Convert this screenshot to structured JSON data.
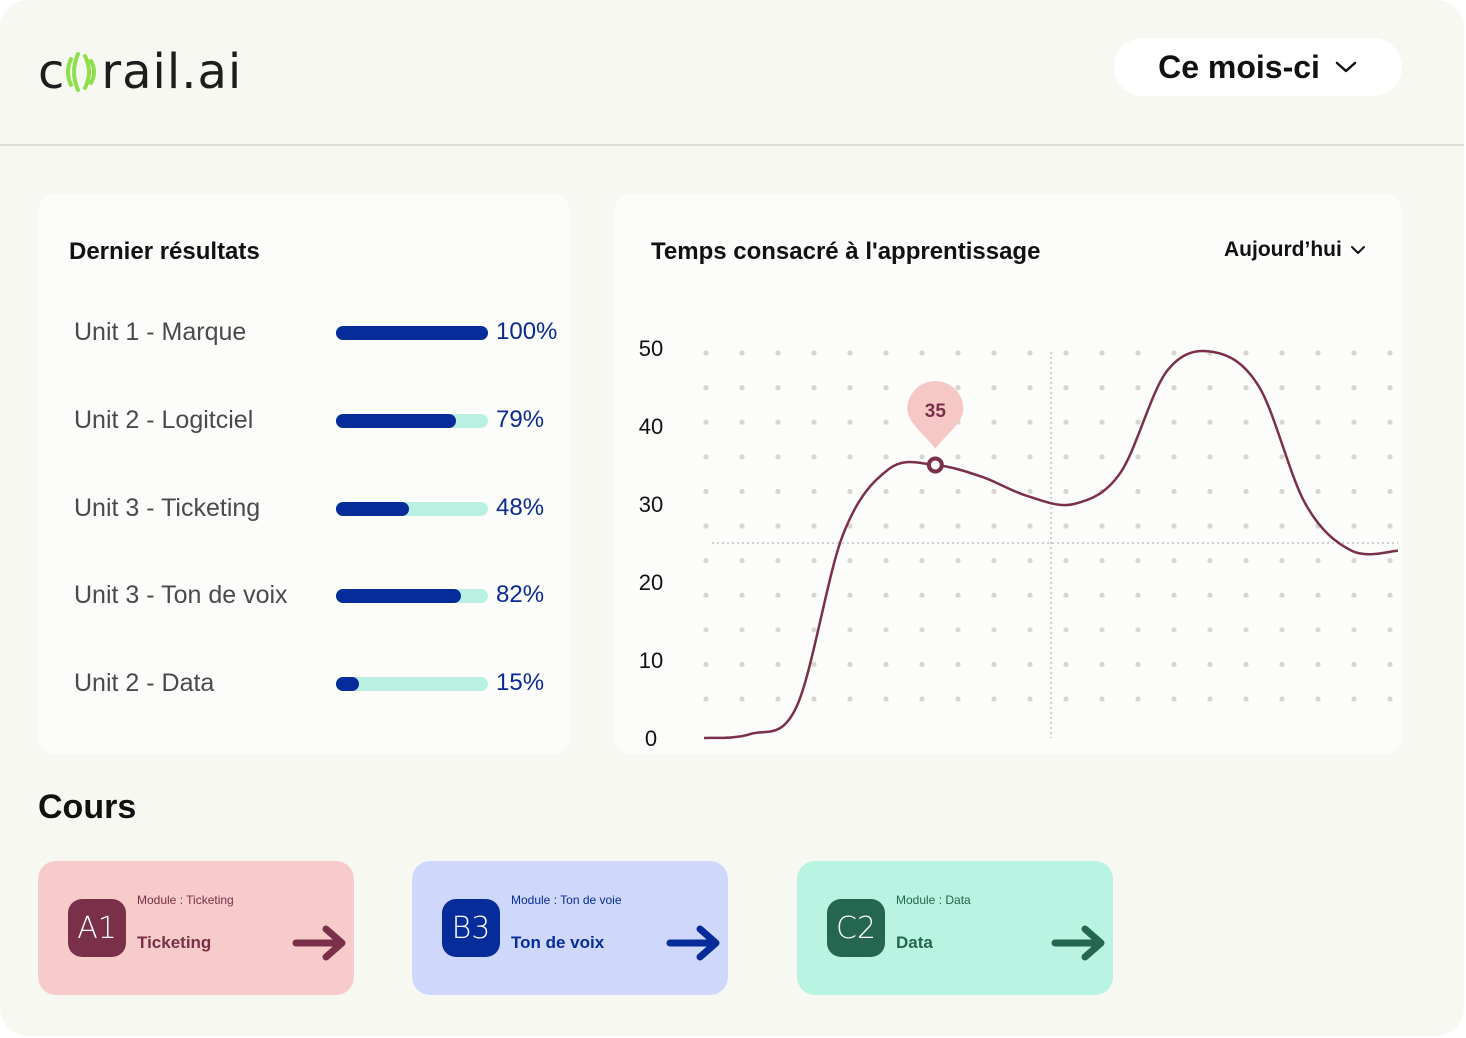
{
  "header": {
    "logo_text_before": "c",
    "logo_text_after": "rail.ai",
    "period_label": "Ce mois-ci",
    "period_icon": "chevron-down-icon"
  },
  "results": {
    "title": "Dernier résultats",
    "items": [
      {
        "label": "Unit 1 - Marque",
        "percent_label": "100%",
        "progress": 1.0
      },
      {
        "label": "Unit 2 - Logitciel",
        "percent_label": "79%",
        "progress": 0.79
      },
      {
        "label": "Unit 3 - Ticketing",
        "percent_label": "48%",
        "progress": 0.48
      },
      {
        "label": "Unit 3 - Ton de voix",
        "percent_label": "82%",
        "progress": 0.82
      },
      {
        "label": "Unit 2 - Data",
        "percent_label": "15%",
        "progress": 0.15
      }
    ],
    "colors": {
      "fill": "#052c98",
      "track": "#b9f0e2"
    }
  },
  "learning_time": {
    "title": "Temps consacré à l'apprentissage",
    "range_label": "Aujourd’hui",
    "range_icon": "chevron-down-icon"
  },
  "chart_data": {
    "type": "line",
    "title": "Temps consacré à l'apprentissage",
    "xlabel": "",
    "ylabel": "",
    "yticks": [
      "0",
      "10",
      "20",
      "30",
      "40",
      "50"
    ],
    "ylim": [
      0,
      50
    ],
    "grid": "dotted",
    "series": [
      {
        "values": [
          0,
          0.5,
          4,
          26,
          34.5,
          35,
          33.5,
          31,
          30,
          34,
          47,
          49.5,
          45,
          30,
          24,
          24
        ]
      }
    ],
    "highlight": {
      "label": "35",
      "value": 35
    },
    "reference_line": {
      "y": 25
    },
    "color": "#7a3049",
    "highlight_color": "#f5c8c6"
  },
  "courses": {
    "title": "Cours",
    "items": [
      {
        "code": "A1",
        "module": "Module : Ticketing",
        "name": "Ticketing",
        "bg": "#f6cbca",
        "accent": "#7a3049",
        "icon": "arrow-right-icon"
      },
      {
        "code": "B3",
        "module": "Module : Ton de voie",
        "name": "Ton de voix",
        "bg": "#cfd8fb",
        "accent": "#052c98",
        "icon": "arrow-right-icon"
      },
      {
        "code": "C2",
        "module": "Module : Data",
        "name": "Data",
        "bg": "#b9f3e2",
        "accent": "#24664f",
        "icon": "arrow-right-icon"
      }
    ]
  }
}
